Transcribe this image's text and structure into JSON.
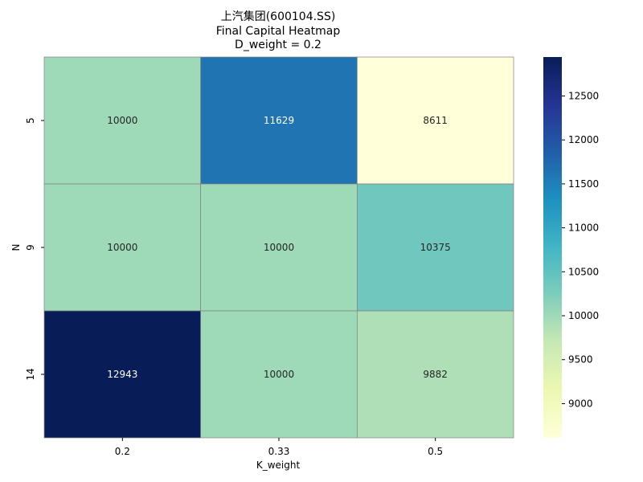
{
  "chart_data": {
    "type": "heatmap",
    "title_lines": [
      "上汽集团(600104.SS)",
      "Final Capital Heatmap",
      "D_weight = 0.2"
    ],
    "xlabel": "K_weight",
    "ylabel": "N",
    "x_categories": [
      "0.2",
      "0.33",
      "0.5"
    ],
    "y_categories": [
      "5",
      "9",
      "14"
    ],
    "values": [
      [
        10000,
        11629,
        8611
      ],
      [
        10000,
        10000,
        10375
      ],
      [
        12943,
        10000,
        9882
      ]
    ],
    "annotations": true,
    "colormap": "YlGnBu",
    "colorbar": {
      "min": 8611,
      "max": 12943,
      "ticks": [
        9000,
        9500,
        10000,
        10500,
        11000,
        11500,
        12000,
        12500
      ]
    },
    "colors": {
      "cell_border": "#808080",
      "text_light": "#ffffff",
      "text_dark": "#262626"
    }
  }
}
